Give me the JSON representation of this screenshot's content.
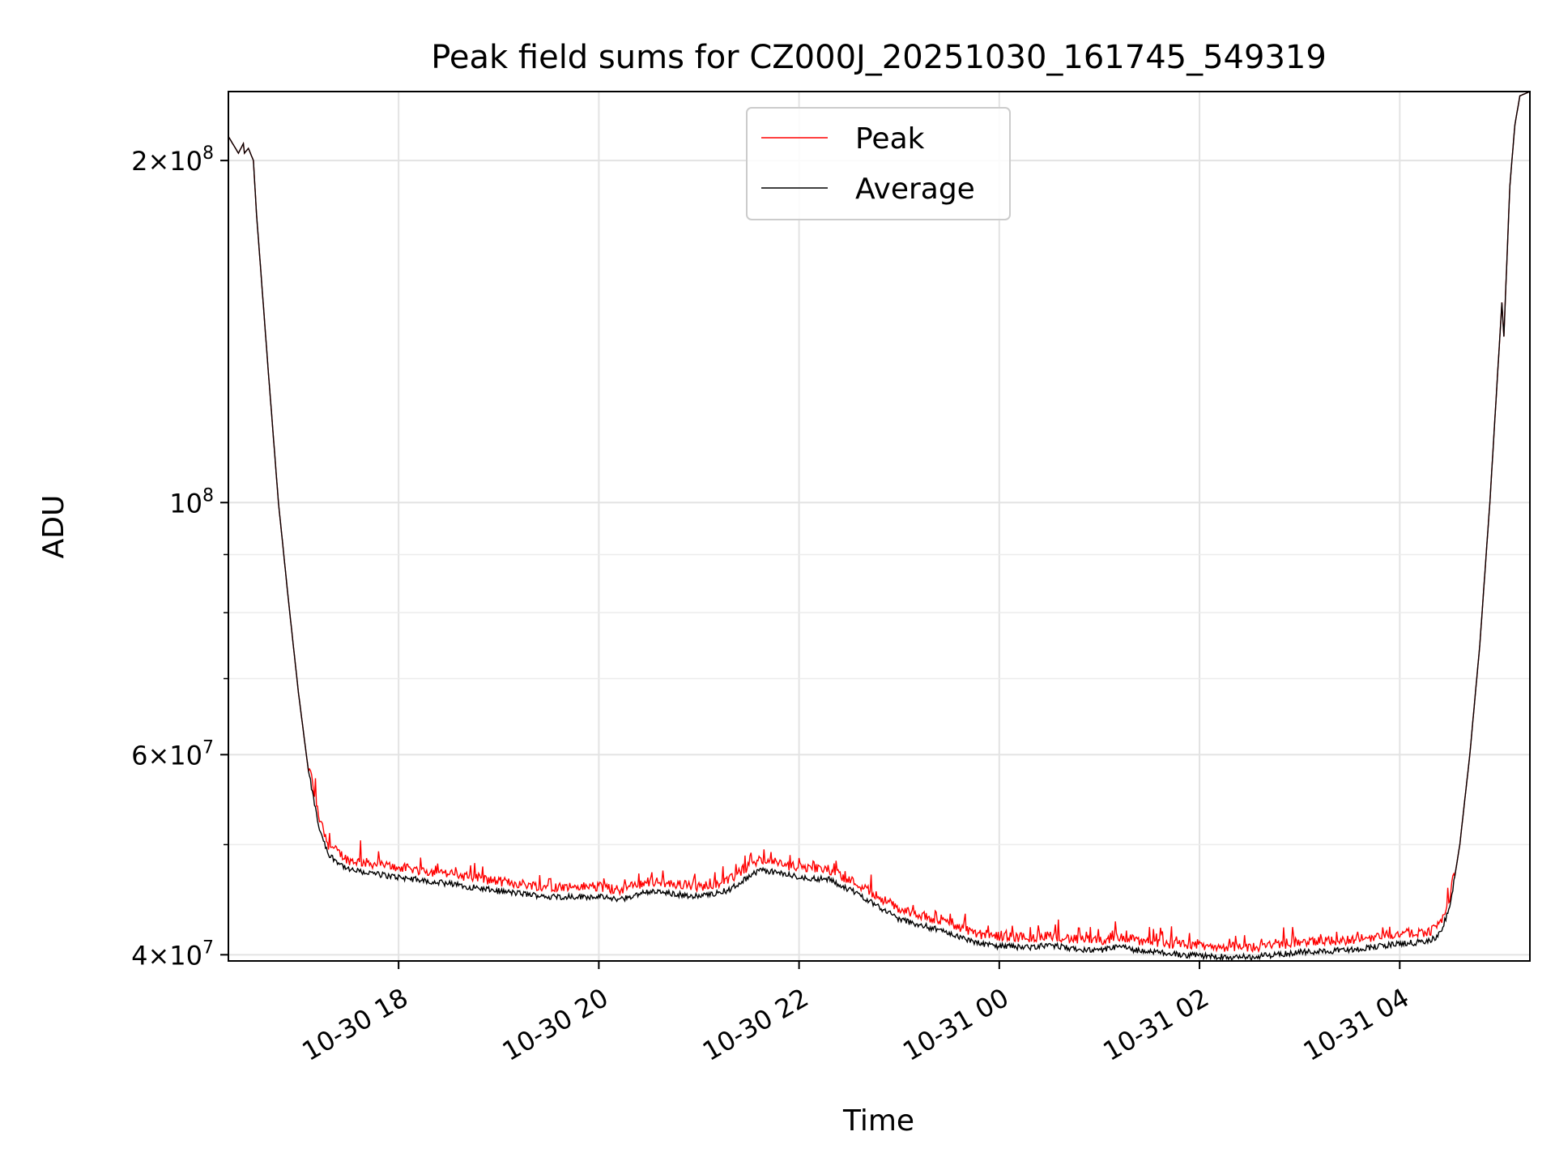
{
  "chart_data": {
    "type": "line",
    "title": "Peak field sums for CZ000J_20251030_161745_549319",
    "xlabel": "Time",
    "ylabel": "ADU",
    "y_scale": "log",
    "xlim_hours": [
      16.3,
      29.3
    ],
    "ylim": [
      39500000,
      230000000
    ],
    "grid": true,
    "legend_position": "top-center",
    "x_ticks": [
      {
        "hour": 18,
        "label": "10-30 18"
      },
      {
        "hour": 20,
        "label": "10-30 20"
      },
      {
        "hour": 22,
        "label": "10-30 22"
      },
      {
        "hour": 24,
        "label": "10-31 00"
      },
      {
        "hour": 26,
        "label": "10-31 02"
      },
      {
        "hour": 28,
        "label": "10-31 04"
      }
    ],
    "y_major_ticks": [
      {
        "value": 40000000,
        "mantissa": "4",
        "exponent": "7"
      },
      {
        "value": 60000000,
        "mantissa": "6",
        "exponent": "7"
      },
      {
        "value": 100000000,
        "mantissa": "",
        "exponent": "8"
      },
      {
        "value": 200000000,
        "mantissa": "2",
        "exponent": "8"
      }
    ],
    "y_minor_ticks": [
      50000000,
      70000000,
      80000000,
      90000000
    ],
    "series": [
      {
        "name": "Peak",
        "color": "#ff0000",
        "noise": 1
      },
      {
        "name": "Average",
        "color": "#000000",
        "noise": 0
      }
    ],
    "shape_points": [
      [
        16.3,
        210000000
      ],
      [
        16.4,
        203000000
      ],
      [
        16.45,
        207000000
      ],
      [
        16.46,
        203000000
      ],
      [
        16.5,
        205000000
      ],
      [
        16.55,
        200000000
      ],
      [
        16.58,
        180000000
      ],
      [
        16.7,
        130000000
      ],
      [
        16.8,
        100000000
      ],
      [
        16.9,
        82000000
      ],
      [
        17.0,
        68000000
      ],
      [
        17.1,
        58000000
      ],
      [
        17.2,
        52000000
      ],
      [
        17.3,
        49000000
      ],
      [
        17.5,
        47500000
      ],
      [
        18.0,
        46800000
      ],
      [
        18.5,
        46200000
      ],
      [
        19.0,
        45500000
      ],
      [
        19.5,
        45000000
      ],
      [
        20.0,
        45000000
      ],
      [
        20.2,
        44700000
      ],
      [
        20.5,
        45500000
      ],
      [
        20.8,
        45200000
      ],
      [
        21.0,
        45000000
      ],
      [
        21.3,
        45600000
      ],
      [
        21.6,
        47500000
      ],
      [
        21.8,
        47200000
      ],
      [
        22.0,
        46800000
      ],
      [
        22.3,
        46600000
      ],
      [
        22.6,
        45200000
      ],
      [
        23.0,
        43000000
      ],
      [
        23.5,
        41800000
      ],
      [
        23.8,
        40900000
      ],
      [
        24.0,
        40700000
      ],
      [
        24.3,
        40600000
      ],
      [
        24.5,
        40800000
      ],
      [
        24.8,
        40400000
      ],
      [
        25.0,
        40300000
      ],
      [
        25.2,
        40700000
      ],
      [
        25.4,
        40300000
      ],
      [
        26.0,
        39900000
      ],
      [
        26.5,
        39800000
      ],
      [
        27.0,
        40200000
      ],
      [
        27.5,
        40400000
      ],
      [
        28.0,
        40900000
      ],
      [
        28.3,
        41100000
      ],
      [
        28.4,
        41700000
      ],
      [
        28.5,
        44000000
      ],
      [
        28.6,
        50000000
      ],
      [
        28.7,
        60000000
      ],
      [
        28.8,
        75000000
      ],
      [
        28.9,
        100000000
      ],
      [
        29.0,
        140000000
      ],
      [
        29.02,
        150000000
      ],
      [
        29.04,
        140000000
      ],
      [
        29.06,
        155000000
      ],
      [
        29.1,
        190000000
      ],
      [
        29.15,
        215000000
      ],
      [
        29.2,
        228000000
      ],
      [
        29.3,
        230000000
      ]
    ]
  }
}
